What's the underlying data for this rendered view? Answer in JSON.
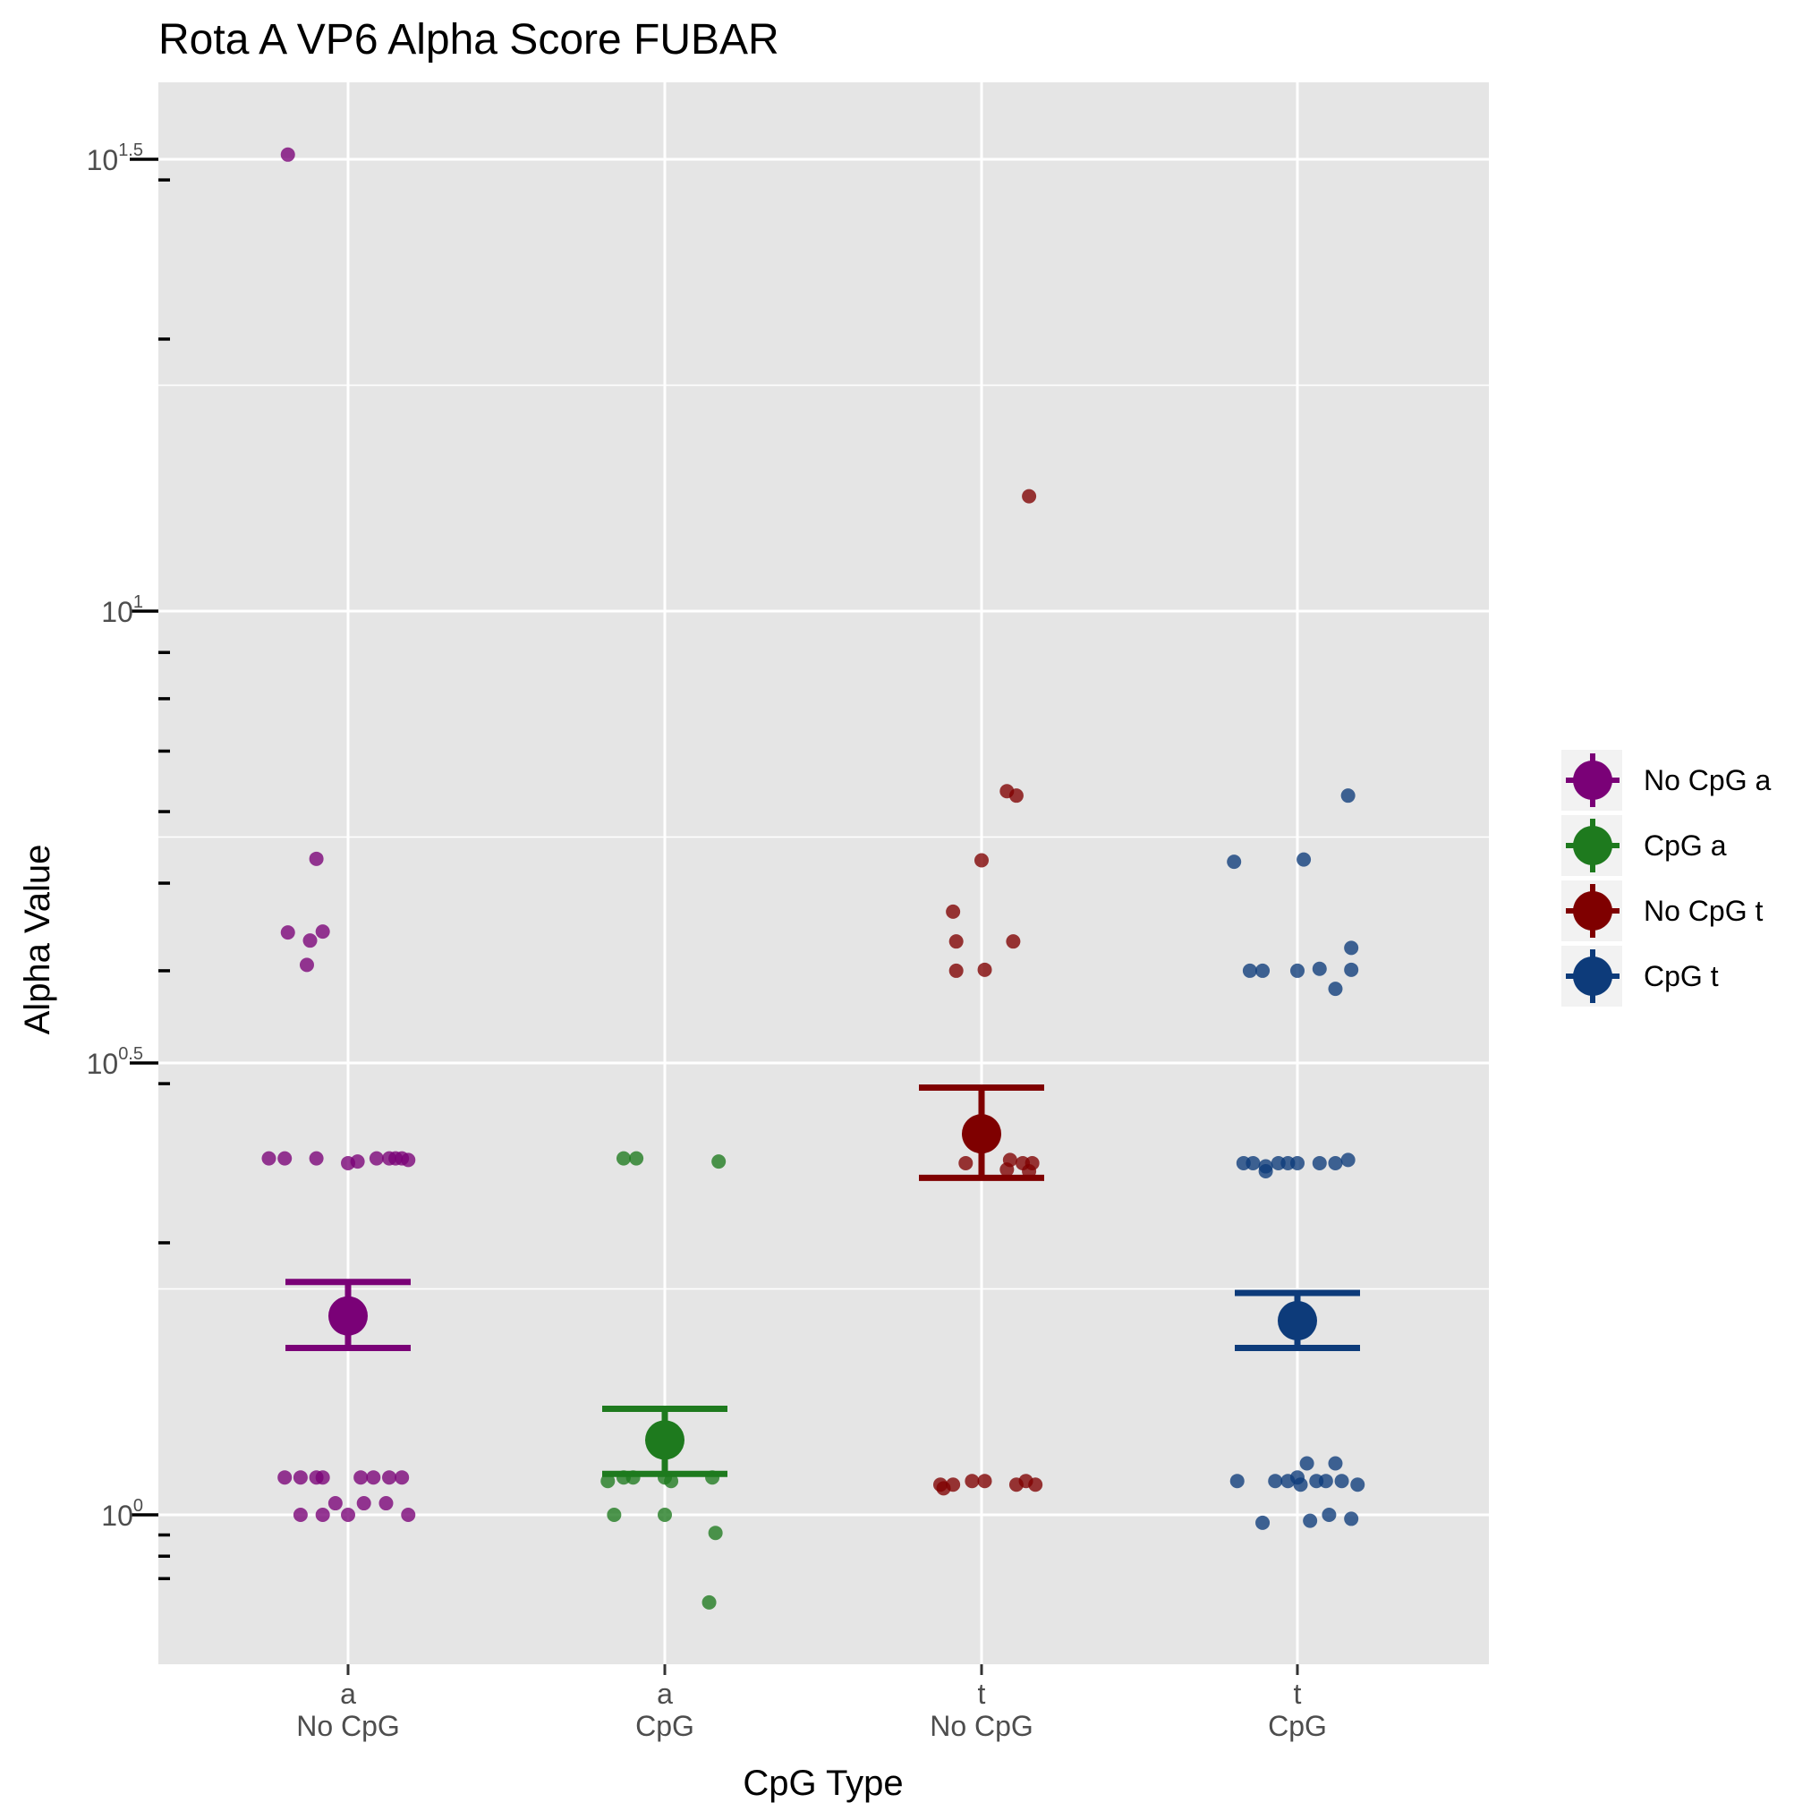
{
  "chart_data": {
    "type": "scatter",
    "title": "Rota A VP6 Alpha Score FUBAR",
    "xlabel": "CpG Type",
    "ylabel": "Alpha Value",
    "y_scale": "log10",
    "ylim": [
      0.85,
      36
    ],
    "y_ticks": [
      {
        "value": 1,
        "base": "10",
        "exp": "0"
      },
      {
        "value": 3.1623,
        "base": "10",
        "exp": "0.5"
      },
      {
        "value": 10,
        "base": "10",
        "exp": "1"
      },
      {
        "value": 31.623,
        "base": "10",
        "exp": "1.5"
      }
    ],
    "grid": true,
    "legend_position": "right",
    "categories": [
      {
        "line1": "a",
        "line2": "No CpG"
      },
      {
        "line1": "a",
        "line2": "CpG"
      },
      {
        "line1": "t",
        "line2": "No CpG"
      },
      {
        "line1": "t",
        "line2": "CpG"
      }
    ],
    "series": [
      {
        "name": "No CpG a",
        "color": "#7a0177",
        "mean": 1.66,
        "err_low": 1.53,
        "err_high": 1.81,
        "points": [
          {
            "x": -0.19,
            "y": 32.0
          },
          {
            "x": -0.1,
            "y": 5.32
          },
          {
            "x": -0.19,
            "y": 4.41
          },
          {
            "x": -0.12,
            "y": 4.32
          },
          {
            "x": -0.08,
            "y": 4.42
          },
          {
            "x": -0.13,
            "y": 4.06
          },
          {
            "x": -0.25,
            "y": 2.48
          },
          {
            "x": -0.2,
            "y": 2.48
          },
          {
            "x": -0.1,
            "y": 2.48
          },
          {
            "x": 0.0,
            "y": 2.45
          },
          {
            "x": 0.03,
            "y": 2.46
          },
          {
            "x": 0.09,
            "y": 2.48
          },
          {
            "x": 0.13,
            "y": 2.48
          },
          {
            "x": 0.15,
            "y": 2.48
          },
          {
            "x": 0.17,
            "y": 2.48
          },
          {
            "x": 0.19,
            "y": 2.47
          },
          {
            "x": -0.2,
            "y": 1.1
          },
          {
            "x": -0.15,
            "y": 1.1
          },
          {
            "x": -0.1,
            "y": 1.1
          },
          {
            "x": -0.08,
            "y": 1.1
          },
          {
            "x": 0.04,
            "y": 1.1
          },
          {
            "x": 0.08,
            "y": 1.1
          },
          {
            "x": 0.13,
            "y": 1.1
          },
          {
            "x": 0.17,
            "y": 1.1
          },
          {
            "x": -0.15,
            "y": 1.0
          },
          {
            "x": -0.08,
            "y": 1.0
          },
          {
            "x": 0.0,
            "y": 1.0
          },
          {
            "x": 0.05,
            "y": 1.03
          },
          {
            "x": 0.12,
            "y": 1.03
          },
          {
            "x": 0.19,
            "y": 1.0
          },
          {
            "x": -0.04,
            "y": 1.03
          }
        ]
      },
      {
        "name": "CpG a",
        "color": "#1e7a1e",
        "mean": 1.21,
        "err_low": 1.11,
        "err_high": 1.31,
        "points": [
          {
            "x": -0.13,
            "y": 2.48
          },
          {
            "x": -0.09,
            "y": 2.48
          },
          {
            "x": 0.17,
            "y": 2.46
          },
          {
            "x": -0.18,
            "y": 1.09
          },
          {
            "x": -0.13,
            "y": 1.1
          },
          {
            "x": -0.1,
            "y": 1.1
          },
          {
            "x": 0.0,
            "y": 1.1
          },
          {
            "x": 0.02,
            "y": 1.09
          },
          {
            "x": 0.15,
            "y": 1.1
          },
          {
            "x": -0.16,
            "y": 1.0
          },
          {
            "x": 0.0,
            "y": 1.0
          },
          {
            "x": 0.16,
            "y": 0.955
          },
          {
            "x": 0.14,
            "y": 0.8
          }
        ]
      },
      {
        "name": "No CpG t",
        "color": "#7f0000",
        "mean": 2.64,
        "err_low": 2.36,
        "err_high": 2.97,
        "points": [
          {
            "x": 0.15,
            "y": 13.4
          },
          {
            "x": 0.08,
            "y": 6.32
          },
          {
            "x": 0.11,
            "y": 6.25
          },
          {
            "x": 0.0,
            "y": 5.3
          },
          {
            "x": -0.09,
            "y": 4.65
          },
          {
            "x": -0.08,
            "y": 4.31
          },
          {
            "x": 0.1,
            "y": 4.31
          },
          {
            "x": -0.08,
            "y": 4.0
          },
          {
            "x": 0.01,
            "y": 4.01
          },
          {
            "x": -0.05,
            "y": 2.45
          },
          {
            "x": 0.09,
            "y": 2.47
          },
          {
            "x": 0.13,
            "y": 2.45
          },
          {
            "x": 0.16,
            "y": 2.45
          },
          {
            "x": 0.08,
            "y": 2.41
          },
          {
            "x": 0.15,
            "y": 2.4
          },
          {
            "x": -0.13,
            "y": 1.08
          },
          {
            "x": -0.09,
            "y": 1.08
          },
          {
            "x": -0.03,
            "y": 1.09
          },
          {
            "x": 0.01,
            "y": 1.09
          },
          {
            "x": 0.11,
            "y": 1.08
          },
          {
            "x": 0.14,
            "y": 1.09
          },
          {
            "x": 0.17,
            "y": 1.08
          },
          {
            "x": -0.12,
            "y": 1.07
          }
        ]
      },
      {
        "name": "CpG t",
        "color": "#0d3b7a",
        "mean": 1.64,
        "err_low": 1.53,
        "err_high": 1.76,
        "points": [
          {
            "x": 0.16,
            "y": 6.25
          },
          {
            "x": -0.2,
            "y": 5.28
          },
          {
            "x": 0.02,
            "y": 5.31
          },
          {
            "x": 0.17,
            "y": 4.24
          },
          {
            "x": -0.15,
            "y": 4.0
          },
          {
            "x": -0.11,
            "y": 4.0
          },
          {
            "x": 0.0,
            "y": 4.0
          },
          {
            "x": 0.07,
            "y": 4.02
          },
          {
            "x": 0.17,
            "y": 4.01
          },
          {
            "x": 0.12,
            "y": 3.82
          },
          {
            "x": -0.17,
            "y": 2.45
          },
          {
            "x": -0.14,
            "y": 2.45
          },
          {
            "x": -0.1,
            "y": 2.43
          },
          {
            "x": -0.06,
            "y": 2.45
          },
          {
            "x": -0.03,
            "y": 2.45
          },
          {
            "x": 0.0,
            "y": 2.45
          },
          {
            "x": 0.07,
            "y": 2.45
          },
          {
            "x": 0.12,
            "y": 2.45
          },
          {
            "x": 0.16,
            "y": 2.47
          },
          {
            "x": -0.1,
            "y": 2.4
          },
          {
            "x": 0.03,
            "y": 1.14
          },
          {
            "x": 0.12,
            "y": 1.14
          },
          {
            "x": -0.19,
            "y": 1.09
          },
          {
            "x": -0.07,
            "y": 1.09
          },
          {
            "x": -0.03,
            "y": 1.09
          },
          {
            "x": 0.0,
            "y": 1.1
          },
          {
            "x": 0.01,
            "y": 1.08
          },
          {
            "x": 0.06,
            "y": 1.09
          },
          {
            "x": 0.09,
            "y": 1.09
          },
          {
            "x": 0.14,
            "y": 1.09
          },
          {
            "x": 0.19,
            "y": 1.08
          },
          {
            "x": -0.11,
            "y": 0.98
          },
          {
            "x": 0.04,
            "y": 0.985
          },
          {
            "x": 0.1,
            "y": 1.0
          },
          {
            "x": 0.17,
            "y": 0.99
          }
        ]
      }
    ]
  }
}
